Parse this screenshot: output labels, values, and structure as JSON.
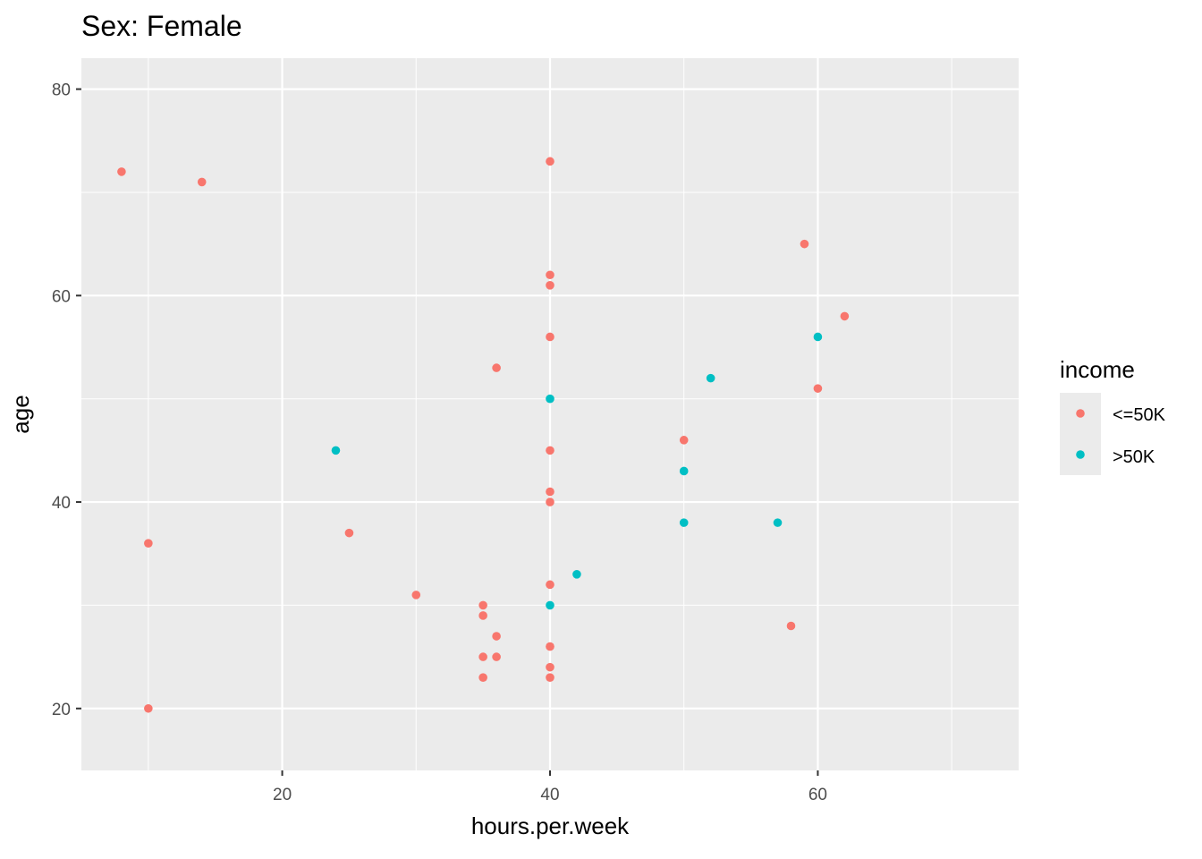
{
  "chart_data": {
    "type": "scatter",
    "title": "Sex: Female",
    "xlabel": "hours.per.week",
    "ylabel": "age",
    "xlim": [
      5,
      75
    ],
    "ylim": [
      14,
      83
    ],
    "x_major_ticks": [
      20,
      40,
      60
    ],
    "x_minor_ticks": [
      10,
      30,
      50,
      70
    ],
    "y_major_ticks": [
      20,
      40,
      60,
      80
    ],
    "y_minor_ticks": [
      30,
      50,
      70
    ],
    "grid": true,
    "legend": {
      "title": "income",
      "position": "right",
      "entries": [
        {
          "label": "<=50K",
          "color": "#F8766D"
        },
        {
          "label": ">50K",
          "color": "#00BFC4"
        }
      ]
    },
    "series": [
      {
        "name": "<=50K",
        "color": "#F8766D",
        "points": [
          [
            8,
            72
          ],
          [
            14,
            71
          ],
          [
            10,
            36
          ],
          [
            10,
            20
          ],
          [
            25,
            37
          ],
          [
            30,
            31
          ],
          [
            35,
            30
          ],
          [
            35,
            29
          ],
          [
            35,
            25
          ],
          [
            35,
            23
          ],
          [
            36,
            53
          ],
          [
            36,
            27
          ],
          [
            36,
            25
          ],
          [
            40,
            73
          ],
          [
            40,
            62
          ],
          [
            40,
            61
          ],
          [
            40,
            56
          ],
          [
            40,
            45
          ],
          [
            40,
            41
          ],
          [
            40,
            40
          ],
          [
            40,
            32
          ],
          [
            40,
            26
          ],
          [
            40,
            24
          ],
          [
            40,
            23
          ],
          [
            50,
            46
          ],
          [
            58,
            28
          ],
          [
            59,
            65
          ],
          [
            60,
            51
          ],
          [
            62,
            58
          ]
        ]
      },
      {
        "name": ">50K",
        "color": "#00BFC4",
        "points": [
          [
            24,
            45
          ],
          [
            40,
            50
          ],
          [
            40,
            30
          ],
          [
            42,
            33
          ],
          [
            50,
            43
          ],
          [
            50,
            38
          ],
          [
            52,
            52
          ],
          [
            57,
            38
          ],
          [
            60,
            56
          ]
        ]
      }
    ]
  }
}
